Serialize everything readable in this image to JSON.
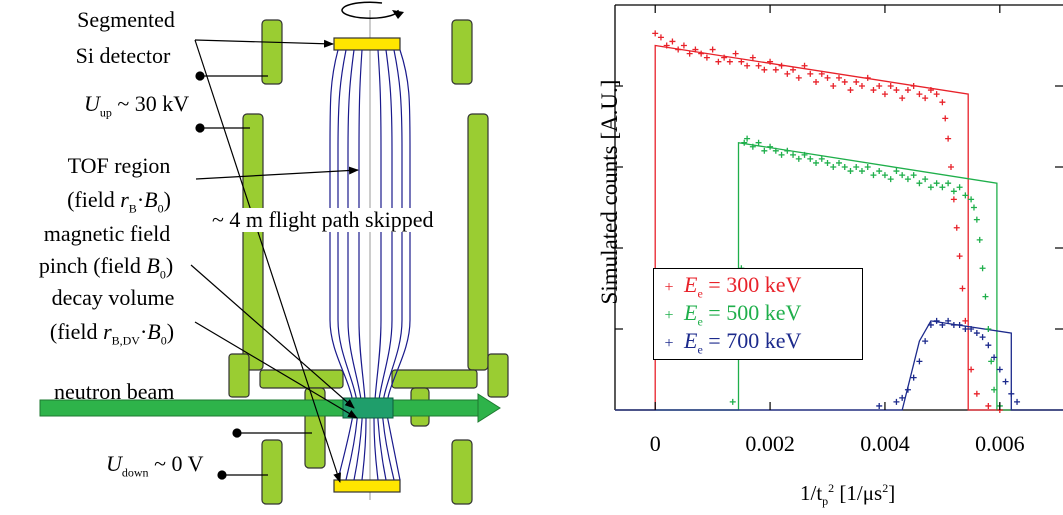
{
  "diagram": {
    "labels": {
      "detector_l1": "Segmented",
      "detector_l2": "Si detector",
      "u_up_sym": "U",
      "u_up_sub": "up",
      "u_up_val": " ~ 30 kV",
      "tof_l1": "TOF region",
      "tof_l2_a": "(field ",
      "tof_l2_r": "r",
      "tof_l2_sub": "B",
      "tof_l2_b": "·",
      "tof_l2_B": "B",
      "tof_l2_0": "0",
      "tof_l2_c": ")",
      "skipped": "~ 4 m flight path skipped",
      "pinch_l1": "magnetic field",
      "pinch_l2_a": "pinch (field ",
      "pinch_l2_B": "B",
      "pinch_l2_0": "0",
      "pinch_l2_c": ")",
      "decay_l1": "decay volume",
      "decay_l2_a": "(field ",
      "decay_l2_r": "r",
      "decay_l2_sub": "B,DV",
      "decay_l2_b": "·",
      "decay_l2_B": "B",
      "decay_l2_0": "0",
      "decay_l2_c": ")",
      "beam": "neutron beam",
      "u_down_sym": "U",
      "u_down_sub": "down",
      "u_down_val": " ~ 0 V"
    },
    "colors": {
      "electrode": "#9ACD32",
      "detector": "#FFE600",
      "beam": "#2EB34A",
      "field_lines": "#1A1A8C"
    }
  },
  "chart_data": {
    "type": "scatter",
    "xlabel": "1/t",
    "xlabel_sub": "p",
    "xlabel_sup": "2",
    "xlabel_units": " [1/μs",
    "xlabel_units_sup": "2",
    "xlabel_end": "]",
    "ylabel": "Simulated counts [A.U.]",
    "xlim": [
      -0.0007,
      0.0071
    ],
    "ylim": [
      0,
      1
    ],
    "xticks": [
      0,
      0.002,
      0.004,
      0.006
    ],
    "xtick_labels": [
      "0",
      "0.002",
      "0.004",
      "0.006"
    ],
    "yticks_minor": [
      0.2,
      0.4,
      0.6,
      0.8
    ],
    "grid": false,
    "legend_position": "lower-left",
    "series": [
      {
        "name": "E",
        "sub": "e",
        "value_text": " = 300 keV",
        "color": "#E8222A",
        "line_x": [
          -0.0007,
          0.0,
          0.0,
          0.00545,
          0.00545,
          0.0071
        ],
        "line_y": [
          0,
          0,
          0.9,
          0.78,
          0,
          0
        ],
        "points": [
          [
            0.0,
            0.93
          ],
          [
            0.0001,
            0.92
          ],
          [
            0.0002,
            0.9
          ],
          [
            0.0003,
            0.91
          ],
          [
            0.0004,
            0.89
          ],
          [
            0.0005,
            0.9
          ],
          [
            0.0006,
            0.88
          ],
          [
            0.0007,
            0.89
          ],
          [
            0.0008,
            0.88
          ],
          [
            0.0009,
            0.87
          ],
          [
            0.001,
            0.89
          ],
          [
            0.0011,
            0.86
          ],
          [
            0.0012,
            0.87
          ],
          [
            0.0013,
            0.86
          ],
          [
            0.0014,
            0.88
          ],
          [
            0.0015,
            0.86
          ],
          [
            0.0016,
            0.85
          ],
          [
            0.0017,
            0.87
          ],
          [
            0.0018,
            0.85
          ],
          [
            0.0019,
            0.84
          ],
          [
            0.002,
            0.86
          ],
          [
            0.0021,
            0.84
          ],
          [
            0.0022,
            0.85
          ],
          [
            0.0023,
            0.83
          ],
          [
            0.0024,
            0.84
          ],
          [
            0.0025,
            0.82
          ],
          [
            0.0026,
            0.85
          ],
          [
            0.0027,
            0.83
          ],
          [
            0.0028,
            0.81
          ],
          [
            0.0029,
            0.83
          ],
          [
            0.003,
            0.82
          ],
          [
            0.0031,
            0.8
          ],
          [
            0.0032,
            0.82
          ],
          [
            0.0033,
            0.81
          ],
          [
            0.0034,
            0.79
          ],
          [
            0.0035,
            0.81
          ],
          [
            0.0036,
            0.8
          ],
          [
            0.0037,
            0.82
          ],
          [
            0.0038,
            0.79
          ],
          [
            0.0039,
            0.8
          ],
          [
            0.004,
            0.78
          ],
          [
            0.0041,
            0.8
          ],
          [
            0.0042,
            0.79
          ],
          [
            0.0043,
            0.77
          ],
          [
            0.0044,
            0.79
          ],
          [
            0.0045,
            0.8
          ],
          [
            0.0046,
            0.78
          ],
          [
            0.0047,
            0.77
          ],
          [
            0.0048,
            0.79
          ],
          [
            0.0049,
            0.78
          ],
          [
            0.005,
            0.76
          ],
          [
            0.00505,
            0.72
          ],
          [
            0.0051,
            0.67
          ],
          [
            0.00515,
            0.6
          ],
          [
            0.0052,
            0.52
          ],
          [
            0.00525,
            0.45
          ],
          [
            0.0053,
            0.38
          ],
          [
            0.00535,
            0.3
          ],
          [
            0.0054,
            0.22
          ],
          [
            0.0055,
            0.1
          ],
          [
            0.0056,
            0.04
          ],
          [
            0.0058,
            0.01
          ],
          [
            0.006,
            0.0
          ]
        ]
      },
      {
        "name": "E",
        "sub": "e",
        "value_text": " = 500 keV",
        "color": "#1FAF4B",
        "line_x": [
          -0.0007,
          0.00145,
          0.00145,
          0.00595,
          0.00595,
          0.0071
        ],
        "line_y": [
          0,
          0,
          0.66,
          0.56,
          0,
          0
        ],
        "points": [
          [
            0.00135,
            0.02
          ],
          [
            0.0015,
            0.35
          ],
          [
            0.00155,
            0.66
          ],
          [
            0.0016,
            0.67
          ],
          [
            0.0017,
            0.65
          ],
          [
            0.0018,
            0.66
          ],
          [
            0.0019,
            0.64
          ],
          [
            0.002,
            0.65
          ],
          [
            0.0021,
            0.64
          ],
          [
            0.0022,
            0.63
          ],
          [
            0.0023,
            0.64
          ],
          [
            0.0024,
            0.63
          ],
          [
            0.0025,
            0.62
          ],
          [
            0.0026,
            0.63
          ],
          [
            0.0027,
            0.62
          ],
          [
            0.0028,
            0.61
          ],
          [
            0.0029,
            0.62
          ],
          [
            0.003,
            0.61
          ],
          [
            0.0031,
            0.6
          ],
          [
            0.0032,
            0.61
          ],
          [
            0.0033,
            0.6
          ],
          [
            0.0034,
            0.59
          ],
          [
            0.0035,
            0.6
          ],
          [
            0.0036,
            0.59
          ],
          [
            0.0037,
            0.6
          ],
          [
            0.0038,
            0.58
          ],
          [
            0.0039,
            0.59
          ],
          [
            0.004,
            0.58
          ],
          [
            0.0041,
            0.57
          ],
          [
            0.0042,
            0.59
          ],
          [
            0.0043,
            0.58
          ],
          [
            0.0044,
            0.57
          ],
          [
            0.0045,
            0.58
          ],
          [
            0.0046,
            0.56
          ],
          [
            0.0047,
            0.57
          ],
          [
            0.0048,
            0.55
          ],
          [
            0.0049,
            0.56
          ],
          [
            0.005,
            0.55
          ],
          [
            0.0051,
            0.56
          ],
          [
            0.0052,
            0.54
          ],
          [
            0.0053,
            0.55
          ],
          [
            0.0054,
            0.53
          ],
          [
            0.0055,
            0.52
          ],
          [
            0.00555,
            0.5
          ],
          [
            0.0056,
            0.47
          ],
          [
            0.00565,
            0.42
          ],
          [
            0.0057,
            0.35
          ],
          [
            0.00575,
            0.28
          ],
          [
            0.0058,
            0.2
          ],
          [
            0.00585,
            0.12
          ],
          [
            0.0059,
            0.05
          ],
          [
            0.006,
            0.01
          ]
        ]
      },
      {
        "name": "E",
        "sub": "e",
        "value_text": " = 700 keV",
        "color": "#1C2A8C",
        "line_x": [
          -0.0007,
          0.0043,
          0.0046,
          0.0048,
          0.0062,
          0.0062,
          0.0071
        ],
        "line_y": [
          0,
          0,
          0.17,
          0.22,
          0.19,
          0,
          0
        ],
        "points": [
          [
            0.0039,
            0.01
          ],
          [
            0.0042,
            0.02
          ],
          [
            0.0043,
            0.03
          ],
          [
            0.0044,
            0.05
          ],
          [
            0.0045,
            0.08
          ],
          [
            0.0046,
            0.12
          ],
          [
            0.0047,
            0.17
          ],
          [
            0.0048,
            0.21
          ],
          [
            0.0049,
            0.22
          ],
          [
            0.005,
            0.21
          ],
          [
            0.0051,
            0.22
          ],
          [
            0.0052,
            0.21
          ],
          [
            0.0053,
            0.21
          ],
          [
            0.0054,
            0.2
          ],
          [
            0.0055,
            0.2
          ],
          [
            0.0056,
            0.19
          ],
          [
            0.0057,
            0.18
          ],
          [
            0.0058,
            0.16
          ],
          [
            0.0059,
            0.13
          ],
          [
            0.006,
            0.1
          ],
          [
            0.0061,
            0.07
          ],
          [
            0.0062,
            0.04
          ],
          [
            0.0063,
            0.02
          ]
        ]
      }
    ]
  }
}
